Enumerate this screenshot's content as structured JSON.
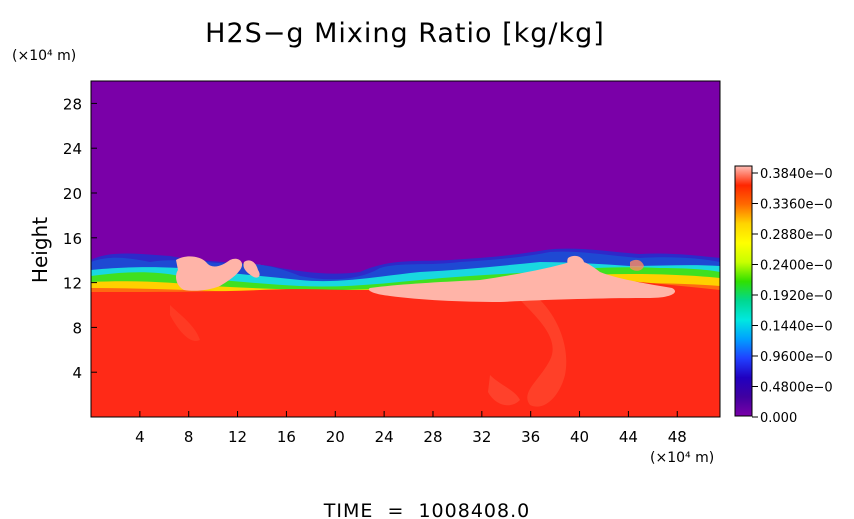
{
  "chart_data": {
    "type": "heatmap",
    "title": "H2S−g Mixing Ratio [kg/kg]",
    "xlabel": "",
    "ylabel": "Height",
    "x_unit": "(×10⁴ m)",
    "y_unit": "(×10⁴ m)",
    "footer": "TIME  =  1008408.0",
    "xlim": [
      0,
      51.5
    ],
    "ylim": [
      0,
      30
    ],
    "x_ticks": [
      "4",
      "8",
      "12",
      "16",
      "20",
      "24",
      "28",
      "32",
      "36",
      "40",
      "44",
      "48"
    ],
    "y_ticks": [
      "4",
      "8",
      "12",
      "16",
      "20",
      "24",
      "28"
    ],
    "colorbar": {
      "labels": [
        "0.3840e−0",
        "0.3360e−0",
        "0.2880e−0",
        "0.2400e−0",
        "0.1920e−0",
        "0.1440e−0",
        "0.9600e−0",
        "0.4800e−0",
        "0.000"
      ],
      "colors": [
        "#ffbfb7",
        "#ff2600",
        "#ff6a00",
        "#ffd400",
        "#ffff00",
        "#c8ff00",
        "#30e000",
        "#00d890",
        "#00e8e0",
        "#00a0ff",
        "#2040ff",
        "#2000c0",
        "#4000a0",
        "#7a00a8"
      ]
    },
    "field_colors": {
      "upper": "#7a00a8",
      "lower": "#ff2a17",
      "cloud": "#ffb4a8"
    },
    "regions": [
      {
        "name": "upper layer",
        "y_from": 14.5,
        "y_to": 30,
        "level": "0.000"
      },
      {
        "name": "transition band",
        "y_from": 11,
        "y_to": 15,
        "level": "mixed"
      },
      {
        "name": "lower layer",
        "y_from": 0,
        "y_to": 11,
        "level": "0.3360e−0"
      }
    ]
  }
}
